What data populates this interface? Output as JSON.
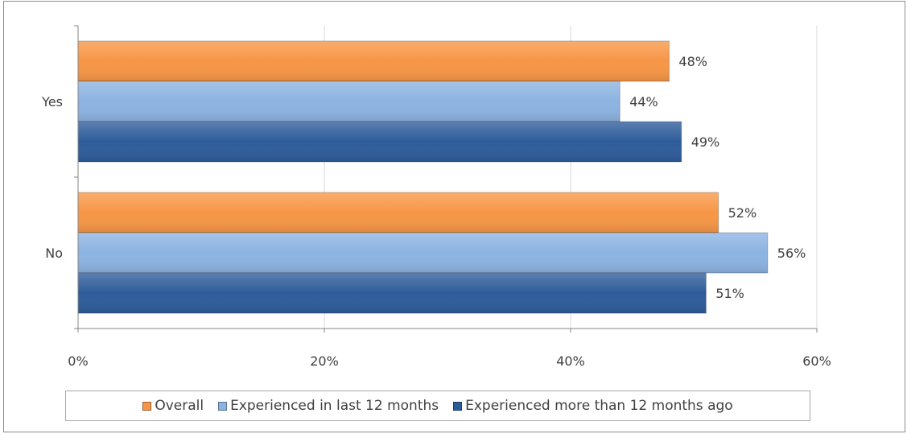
{
  "chart_data": {
    "type": "bar",
    "orientation": "horizontal",
    "categories": [
      "Yes",
      "No"
    ],
    "series": [
      {
        "name": "Overall",
        "values": [
          48,
          52
        ],
        "labels": [
          "48%",
          "52%"
        ],
        "color": "#F79646"
      },
      {
        "name": "Experienced in last 12 months",
        "values": [
          44,
          56
        ],
        "labels": [
          "44%",
          "56%"
        ],
        "color": "#8DB3E2"
      },
      {
        "name": "Experienced more than 12 months ago",
        "values": [
          49,
          51
        ],
        "labels": [
          "49%",
          "51%"
        ],
        "color": "#2E5C9A"
      }
    ],
    "xlim": [
      0,
      60
    ],
    "x_ticks": [
      0,
      20,
      40,
      60
    ],
    "x_tick_labels": [
      "0%",
      "20%",
      "40%",
      "60%"
    ],
    "grid": "vertical",
    "legend_position": "bottom",
    "title": "",
    "xlabel": "",
    "ylabel": ""
  }
}
